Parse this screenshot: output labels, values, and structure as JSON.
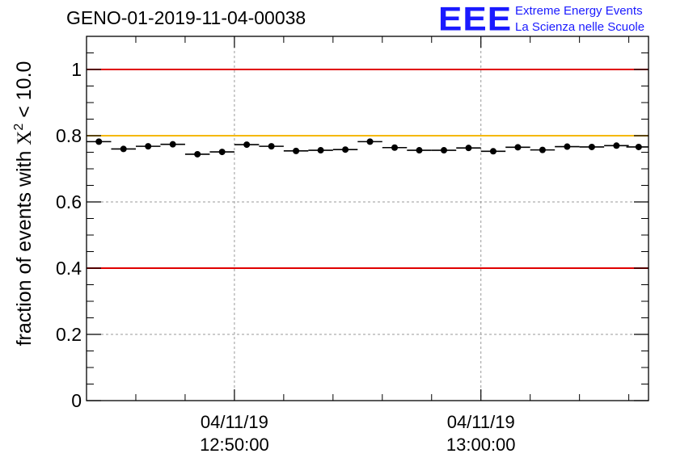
{
  "header": {
    "title": "GENO-01-2019-11-04-00038",
    "logo_text": "EEE",
    "logo_line1": "Extreme Energy Events",
    "logo_line2": "La Scienza nelle Scuole"
  },
  "chart_data": {
    "type": "scatter",
    "title": "GENO-01-2019-11-04-00038",
    "xlabel": "",
    "ylabel_prefix": "fraction of events with ",
    "ylabel_symbol": "X",
    "ylabel_sup": "2",
    "ylabel_suffix": " < 10.0",
    "ylim": [
      0,
      1.1
    ],
    "xlim_minutes": [
      0,
      22.8
    ],
    "yticks": [
      0,
      0.2,
      0.4,
      0.6,
      0.8,
      1
    ],
    "ytick_labels": [
      "0",
      "0.2",
      "0.4",
      "0.6",
      "0.8",
      "1"
    ],
    "xticks": [
      {
        "minute": 6,
        "date": "04/11/19",
        "time": "12:50:00"
      },
      {
        "minute": 16,
        "date": "04/11/19",
        "time": "13:00:00"
      }
    ],
    "grid": true,
    "reference_lines": [
      {
        "y": 1.0,
        "color": "#e00000"
      },
      {
        "y": 0.8,
        "color": "#f5b800"
      },
      {
        "y": 0.4,
        "color": "#e00000"
      }
    ],
    "bin_width_minutes": 1,
    "x": [
      0.5,
      1.5,
      2.5,
      3.5,
      4.5,
      5.5,
      6.5,
      7.5,
      8.5,
      9.5,
      10.5,
      11.5,
      12.5,
      13.5,
      14.5,
      15.5,
      16.5,
      17.5,
      18.5,
      19.5,
      20.5,
      21.5,
      22.4
    ],
    "values": [
      0.782,
      0.76,
      0.768,
      0.774,
      0.744,
      0.751,
      0.773,
      0.768,
      0.754,
      0.756,
      0.758,
      0.782,
      0.764,
      0.756,
      0.756,
      0.763,
      0.753,
      0.765,
      0.757,
      0.767,
      0.766,
      0.77,
      0.766
    ]
  }
}
